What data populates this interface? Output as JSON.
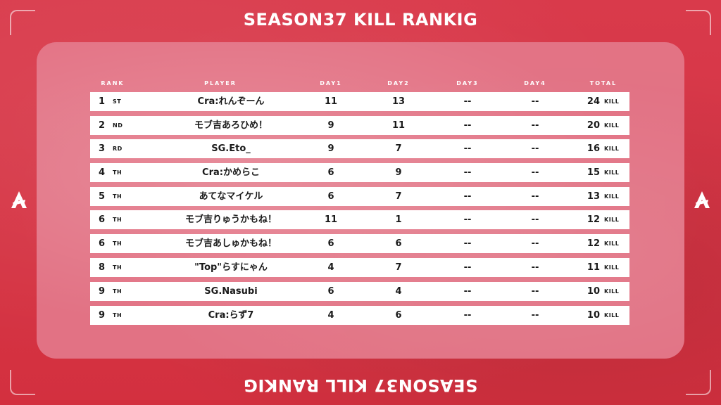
{
  "title": "SEASON37 KILL RANKIG",
  "headers": {
    "rank": "RANK",
    "player": "PLAYER",
    "day1": "DAY1",
    "day2": "DAY2",
    "day3": "DAY3",
    "day4": "DAY4",
    "total": "TOTAL"
  },
  "kill_label": "KILL",
  "rows": [
    {
      "rank": "1",
      "suffix": "ST",
      "player": "Cra:れんぞーん",
      "day1": "11",
      "day2": "13",
      "day3": "--",
      "day4": "--",
      "total": "24"
    },
    {
      "rank": "2",
      "suffix": "ND",
      "player": "モブ吉あろひめ！",
      "day1": "9",
      "day2": "11",
      "day3": "--",
      "day4": "--",
      "total": "20"
    },
    {
      "rank": "3",
      "suffix": "RD",
      "player": "SG.Eto_",
      "day1": "9",
      "day2": "7",
      "day3": "--",
      "day4": "--",
      "total": "16"
    },
    {
      "rank": "4",
      "suffix": "TH",
      "player": "Cra:かめらこ",
      "day1": "6",
      "day2": "9",
      "day3": "--",
      "day4": "--",
      "total": "15"
    },
    {
      "rank": "5",
      "suffix": "TH",
      "player": "あてなマイケル",
      "day1": "6",
      "day2": "7",
      "day3": "--",
      "day4": "--",
      "total": "13"
    },
    {
      "rank": "6",
      "suffix": "TH",
      "player": "モブ吉りゅうかもね！",
      "day1": "11",
      "day2": "1",
      "day3": "--",
      "day4": "--",
      "total": "12"
    },
    {
      "rank": "6",
      "suffix": "TH",
      "player": "モブ吉あしゅかもね！",
      "day1": "6",
      "day2": "6",
      "day3": "--",
      "day4": "--",
      "total": "12"
    },
    {
      "rank": "8",
      "suffix": "TH",
      "player": "\"Top\"らすにゃん",
      "day1": "4",
      "day2": "7",
      "day3": "--",
      "day4": "--",
      "total": "11"
    },
    {
      "rank": "9",
      "suffix": "TH",
      "player": "SG.Nasubi",
      "day1": "6",
      "day2": "4",
      "day3": "--",
      "day4": "--",
      "total": "10"
    },
    {
      "rank": "9",
      "suffix": "TH",
      "player": "Cra:らず7",
      "day1": "4",
      "day2": "6",
      "day3": "--",
      "day4": "--",
      "total": "10"
    }
  ],
  "colors": {
    "background": "#d8394a",
    "panel": "#e4788a",
    "row": "#ffffff",
    "text": "#1a1a1a"
  },
  "icons": {
    "logo": "team-logo-icon"
  }
}
